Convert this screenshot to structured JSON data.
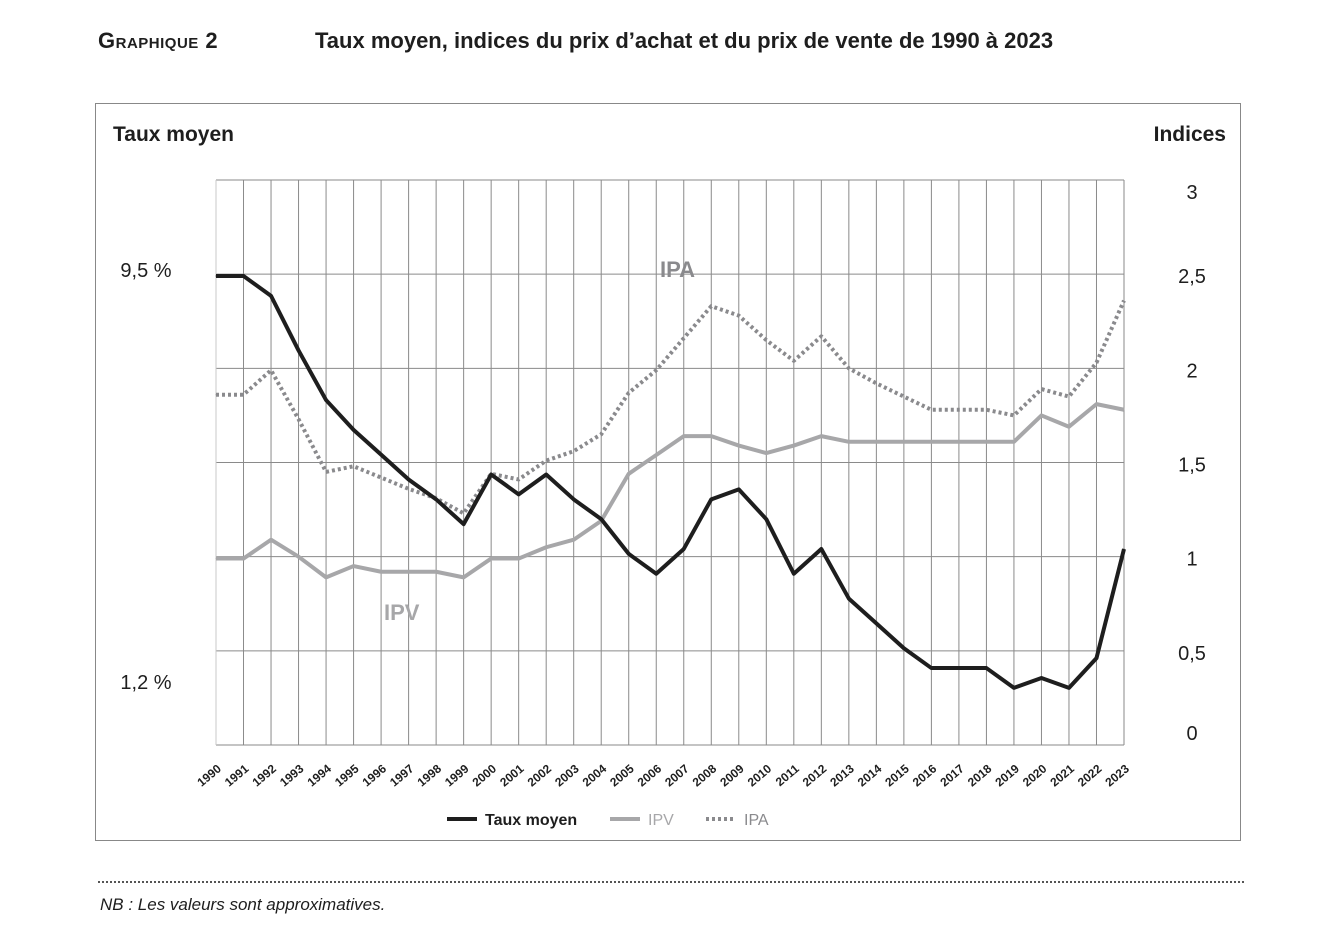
{
  "title": {
    "number": "Graphique 2",
    "text": "Taux moyen, indices du prix d’achat et du prix de vente de 1990 à 2023"
  },
  "note": "NB : Les valeurs sont approximatives.",
  "chart_data": {
    "type": "line",
    "title": "Taux moyen, indices du prix d’achat et du prix de vente de 1990 à 2023",
    "x": [
      "1990",
      "1991",
      "1992",
      "1993",
      "1994",
      "1995",
      "1996",
      "1997",
      "1998",
      "1999",
      "2000",
      "2001",
      "2002",
      "2003",
      "2004",
      "2005",
      "2006",
      "2007",
      "2008",
      "2009",
      "2010",
      "2011",
      "2012",
      "2013",
      "2014",
      "2015",
      "2016",
      "2017",
      "2018",
      "2019",
      "2020",
      "2021",
      "2022",
      "2023"
    ],
    "ylabel_left": "Taux moyen",
    "ylabel_right": "Indices",
    "left_ticks": [
      "9,5 %",
      "1,2 %"
    ],
    "left_tick_values": [
      9.5,
      1.2
    ],
    "right_ticks": [
      "0",
      "0,5",
      "1",
      "1,5",
      "2",
      "2,5",
      "3"
    ],
    "right_tick_values": [
      0,
      0.5,
      1,
      1.5,
      2,
      2.5,
      3
    ],
    "ylim_right": [
      0,
      3
    ],
    "grid": true,
    "legend_position": "bottom-center",
    "annotations": [
      "IPA",
      "IPV"
    ],
    "series": [
      {
        "name": "Taux moyen",
        "axis": "left",
        "color": "#1e1e1e",
        "style": "solid",
        "values": [
          9.5,
          9.5,
          9.1,
          8.0,
          7.0,
          6.4,
          5.9,
          5.4,
          5.0,
          4.5,
          5.5,
          5.1,
          5.5,
          5.0,
          4.6,
          3.9,
          3.5,
          4.0,
          5.0,
          5.2,
          4.6,
          3.5,
          4.0,
          3.0,
          2.5,
          2.0,
          1.6,
          1.6,
          1.6,
          1.2,
          1.4,
          1.2,
          1.8,
          4.0
        ]
      },
      {
        "name": "IPV",
        "axis": "right",
        "color": "#a7a7a9",
        "style": "solid",
        "values": [
          0.99,
          0.99,
          1.09,
          1.0,
          0.89,
          0.95,
          0.92,
          0.92,
          0.92,
          0.89,
          0.99,
          0.99,
          1.05,
          1.09,
          1.19,
          1.44,
          1.54,
          1.64,
          1.64,
          1.59,
          1.55,
          1.59,
          1.64,
          1.61,
          1.61,
          1.61,
          1.61,
          1.61,
          1.61,
          1.61,
          1.75,
          1.69,
          1.81,
          1.78
        ]
      },
      {
        "name": "IPA",
        "axis": "right",
        "color": "#8a8a8d",
        "style": "dotted",
        "values": [
          1.86,
          1.86,
          1.99,
          1.73,
          1.45,
          1.48,
          1.42,
          1.36,
          1.31,
          1.23,
          1.44,
          1.41,
          1.51,
          1.56,
          1.65,
          1.87,
          1.99,
          2.16,
          2.33,
          2.28,
          2.15,
          2.04,
          2.17,
          2.0,
          1.92,
          1.85,
          1.78,
          1.78,
          1.78,
          1.75,
          1.89,
          1.85,
          2.03,
          2.36
        ]
      }
    ]
  }
}
